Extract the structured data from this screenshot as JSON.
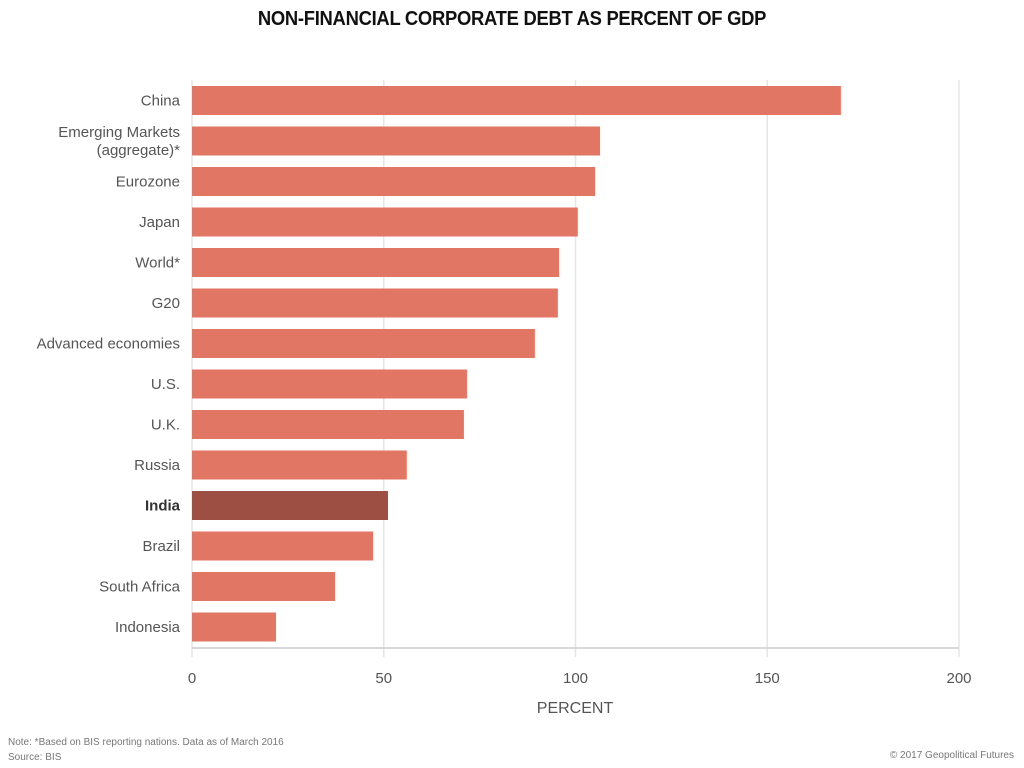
{
  "chart_data": {
    "type": "bar",
    "orientation": "horizontal",
    "title": "NON-FINANCIAL CORPORATE DEBT AS PERCENT OF GDP",
    "xlabel": "PERCENT",
    "ylabel": "",
    "xlim": [
      0,
      200
    ],
    "xticks": [
      0,
      50,
      100,
      150,
      200
    ],
    "grid": true,
    "categories": [
      [
        "China"
      ],
      [
        "Emerging Markets",
        "(aggregate)*"
      ],
      [
        "Eurozone"
      ],
      [
        "Japan"
      ],
      [
        "World*"
      ],
      [
        "G20"
      ],
      [
        "Advanced economies"
      ],
      [
        "U.S."
      ],
      [
        "U.K."
      ],
      [
        "Russia"
      ],
      [
        "India"
      ],
      [
        "Brazil"
      ],
      [
        "South Africa"
      ],
      [
        "Indonesia"
      ]
    ],
    "values": [
      169.2,
      106.4,
      105.1,
      100.6,
      95.7,
      95.4,
      89.4,
      71.7,
      70.9,
      56.0,
      51.1,
      47.2,
      37.3,
      21.9
    ],
    "highlight": "India",
    "colors": {
      "bar": "#e27665",
      "highlight": "#9e4f43",
      "grid": "#e6e6e6",
      "axis": "#cccccc"
    }
  },
  "footer": {
    "note": "Note: *Based on BIS reporting nations. Data as of March 2016",
    "source": "Source: BIS",
    "credit": "© 2017 Geopolitical Futures"
  }
}
